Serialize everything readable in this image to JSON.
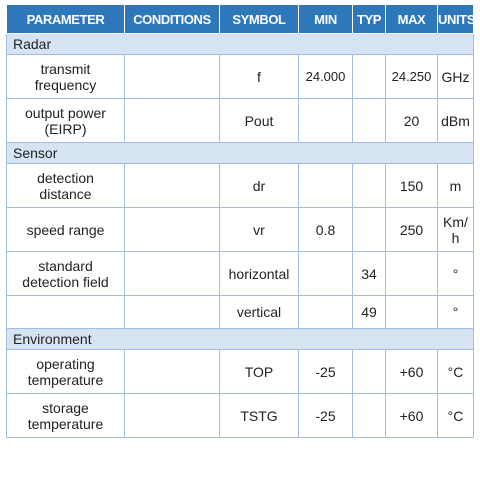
{
  "headers": [
    "PARAMETER",
    "CONDITIONS",
    "SYMBOL",
    "MIN",
    "TYP",
    "MAX",
    "UNITS"
  ],
  "sections": [
    {
      "title": "Radar",
      "rows": [
        {
          "parameter": "transmit\nfrequency",
          "conditions": "",
          "symbol": "f",
          "min": "24.000",
          "typ": "",
          "max": "24.250",
          "units": "GHz"
        },
        {
          "parameter": "output power\n(EIRP)",
          "conditions": "",
          "symbol": "Pout",
          "min": "",
          "typ": "",
          "max": "20",
          "units": "dBm"
        }
      ]
    },
    {
      "title": "Sensor",
      "rows": [
        {
          "parameter": "detection\ndistance",
          "conditions": "",
          "symbol": "dr",
          "min": "",
          "typ": "",
          "max": "150",
          "units": "m"
        },
        {
          "parameter": "speed range",
          "conditions": "",
          "symbol": "vr",
          "min": "0.8",
          "typ": "",
          "max": "250",
          "units": "Km/\nh"
        },
        {
          "parameter": "standard\ndetection field",
          "conditions": "",
          "symbol": "horizontal",
          "min": "",
          "typ": "34",
          "max": "",
          "units": "°"
        },
        {
          "parameter": "",
          "conditions": "",
          "symbol": "vertical",
          "min": "",
          "typ": "49",
          "max": "",
          "units": "°"
        }
      ]
    },
    {
      "title": "Environment",
      "rows": [
        {
          "parameter": "operating\ntemperature",
          "conditions": "",
          "symbol": "TOP",
          "min": "-25",
          "typ": "",
          "max": "+60",
          "units": "°C"
        },
        {
          "parameter": "storage\ntemperature",
          "conditions": "",
          "symbol": "TSTG",
          "min": "-25",
          "typ": "",
          "max": "+60",
          "units": "°C"
        }
      ]
    }
  ]
}
